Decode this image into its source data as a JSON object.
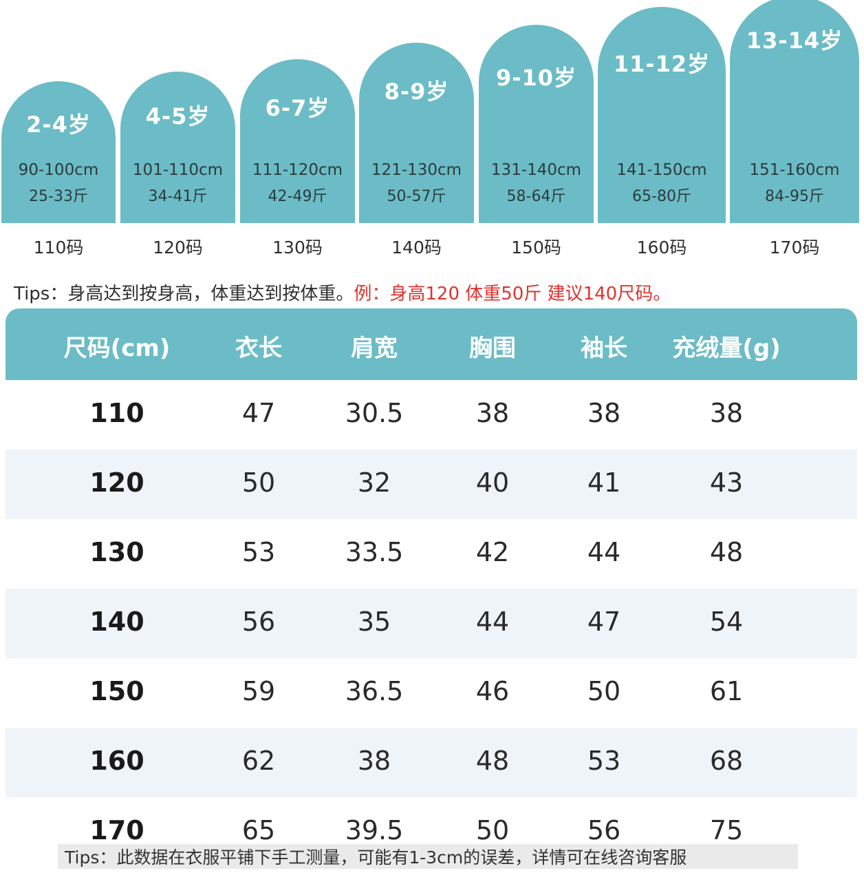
{
  "age_cards": [
    {
      "age": "2-4岁",
      "height": "90-100cm",
      "weight": "25-33斤",
      "size": "110码"
    },
    {
      "age": "4-5岁",
      "height": "101-110cm",
      "weight": "34-41斤",
      "size": "120码"
    },
    {
      "age": "6-7岁",
      "height": "111-120cm",
      "weight": "42-49斤",
      "size": "130码"
    },
    {
      "age": "8-9岁",
      "height": "121-130cm",
      "weight": "50-57斤",
      "size": "140码"
    },
    {
      "age": "9-10岁",
      "height": "131-140cm",
      "weight": "58-64斤",
      "size": "150码"
    },
    {
      "age": "11-12岁",
      "height": "141-150cm",
      "weight": "65-80斤",
      "size": "160码"
    },
    {
      "age": "13-14岁",
      "height": "151-160cm",
      "weight": "84-95斤",
      "size": "170码"
    }
  ],
  "tips_top": {
    "normal": "Tips：身高达到按身高，体重达到按体重。",
    "example": "例：身高120  体重50斤   建议140尺码。"
  },
  "table": {
    "headers": [
      "尺码(cm)",
      "衣长",
      "肩宽",
      "胸围",
      "袖长",
      "充绒量(g)"
    ],
    "rows": [
      [
        "110",
        "47",
        "30.5",
        "38",
        "38",
        "38"
      ],
      [
        "120",
        "50",
        "32",
        "40",
        "41",
        "43"
      ],
      [
        "130",
        "53",
        "33.5",
        "42",
        "44",
        "48"
      ],
      [
        "140",
        "56",
        "35",
        "44",
        "47",
        "54"
      ],
      [
        "150",
        "59",
        "36.5",
        "46",
        "50",
        "61"
      ],
      [
        "160",
        "62",
        "38",
        "48",
        "53",
        "68"
      ],
      [
        "170",
        "65",
        "39.5",
        "50",
        "56",
        "75"
      ]
    ]
  },
  "tips_bottom": "Tips：此数据在衣服平铺下手工测量，可能有1-3cm的误差，详情可在线咨询客服",
  "colors": {
    "accent": "#6bbcc6",
    "alt_row": "#eff4f8",
    "highlight_red": "#e0322e"
  }
}
